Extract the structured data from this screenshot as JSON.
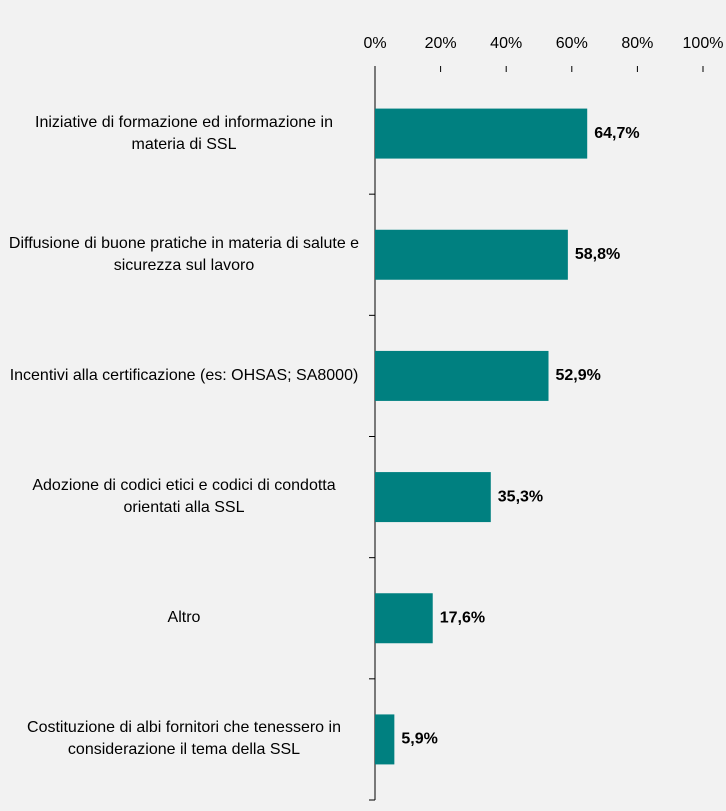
{
  "chart_data": {
    "type": "barh",
    "categories": [
      "Iniziative di formazione ed informazione in materia di SSL",
      "Diffusione di buone pratiche in materia di salute e sicurezza sul lavoro",
      "Incentivi alla certificazione (es: OHSAS; SA8000)",
      "Adozione di codici etici e codici di condotta orientati alla SSL",
      "Altro",
      "Costituzione di albi fornitori che tenessero in considerazione il tema della SSL"
    ],
    "values": [
      64.7,
      58.8,
      52.9,
      35.3,
      17.6,
      5.9
    ],
    "value_labels": [
      "64,7%",
      "58,8%",
      "52,9%",
      "35,3%",
      "17,6%",
      "5,9%"
    ],
    "color": "#008080",
    "xlim": [
      0,
      100
    ],
    "xticks": [
      {
        "value": 0,
        "label": "0%"
      },
      {
        "value": 20,
        "label": "20%"
      },
      {
        "value": 40,
        "label": "40%"
      },
      {
        "value": 60,
        "label": "60%"
      },
      {
        "value": 80,
        "label": "80%"
      },
      {
        "value": 100,
        "label": "100%"
      }
    ]
  }
}
